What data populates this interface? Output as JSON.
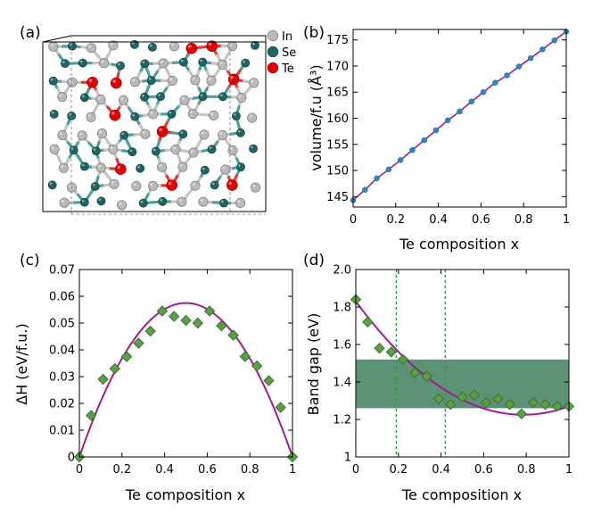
{
  "figure": {
    "panel_labels": [
      "(a)",
      "(b)",
      "(c)",
      "(d)"
    ],
    "legend_atoms": [
      {
        "label": "In",
        "color": "#b9b9b9"
      },
      {
        "label": "Se",
        "color": "#1f6463"
      },
      {
        "label": "Te",
        "color": "#e00000"
      }
    ]
  },
  "chart_data": [
    {
      "panel": "(b)",
      "type": "line",
      "xlabel": "Te composition x",
      "ylabel": "volume/f.u (Å³)",
      "xlim": [
        0,
        1
      ],
      "ylim": [
        143,
        177
      ],
      "xticks": [
        0,
        0.2,
        0.4,
        0.6,
        0.8,
        1
      ],
      "xtick_labels": [
        "0",
        "0.2",
        "0.4",
        "0.6",
        "0.8",
        "1"
      ],
      "yticks": [
        145,
        150,
        155,
        160,
        165,
        170,
        175
      ],
      "ytick_labels": [
        "145",
        "150",
        "155",
        "160",
        "165",
        "170",
        "175"
      ],
      "colors": {
        "line": "#9c1d8e",
        "marker": "#2f86c6"
      },
      "series": [
        {
          "x": [
            0,
            0.0556,
            0.1111,
            0.1667,
            0.2222,
            0.2778,
            0.3333,
            0.3889,
            0.4444,
            0.5,
            0.5556,
            0.6111,
            0.6667,
            0.7222,
            0.7778,
            0.8333,
            0.8889,
            0.9444,
            1
          ],
          "y": [
            144.3,
            146.3,
            148.5,
            150.2,
            152.0,
            153.9,
            155.8,
            157.7,
            159.6,
            161.3,
            163.2,
            165.0,
            166.8,
            168.2,
            169.9,
            171.5,
            173.2,
            174.9,
            176.6
          ]
        }
      ]
    },
    {
      "panel": "(c)",
      "type": "scatter",
      "xlabel": "Te composition x",
      "ylabel": "ΔH (eV/f.u.)",
      "xlim": [
        0,
        1
      ],
      "ylim": [
        0,
        0.07
      ],
      "xticks": [
        0,
        0.2,
        0.4,
        0.6,
        0.8,
        1
      ],
      "xtick_labels": [
        "0",
        "0.2",
        "0.4",
        "0.6",
        "0.8",
        "1"
      ],
      "yticks": [
        0,
        0.01,
        0.02,
        0.03,
        0.04,
        0.05,
        0.06,
        0.07
      ],
      "ytick_labels": [
        "0",
        "0.01",
        "0.02",
        "0.03",
        "0.04",
        "0.05",
        "0.06",
        "0.07"
      ],
      "colors": {
        "curve": "#9c1d8e",
        "marker_fill": "#5aa045",
        "marker_edge": "#3d6e30"
      },
      "fit_curve": {
        "form": "parabola",
        "peak_x": 0.5,
        "peak_y": 0.0575
      },
      "series": [
        {
          "x": [
            0,
            0.0556,
            0.1111,
            0.1667,
            0.2222,
            0.2778,
            0.3333,
            0.3889,
            0.4444,
            0.5,
            0.5556,
            0.6111,
            0.6667,
            0.7222,
            0.7778,
            0.8333,
            0.8889,
            0.9444,
            1
          ],
          "y": [
            0,
            0.0155,
            0.029,
            0.033,
            0.0375,
            0.0425,
            0.047,
            0.0545,
            0.0525,
            0.051,
            0.05,
            0.0545,
            0.049,
            0.0455,
            0.0375,
            0.034,
            0.0285,
            0.0185,
            0
          ]
        }
      ]
    },
    {
      "panel": "(d)",
      "type": "scatter",
      "xlabel": "Te composition x",
      "ylabel": "Band gap (eV)",
      "xlim": [
        0,
        1
      ],
      "ylim": [
        1.0,
        2.0
      ],
      "xticks": [
        0,
        0.2,
        0.4,
        0.6,
        0.8,
        1
      ],
      "xtick_labels": [
        "0",
        "0.2",
        "0.4",
        "0.6",
        "0.8",
        "1"
      ],
      "yticks": [
        1,
        1.2,
        1.4,
        1.6,
        1.8,
        2.0
      ],
      "ytick_labels": [
        "1",
        "1.2",
        "1.4",
        "1.6",
        "1.8",
        "2.0"
      ],
      "colors": {
        "curve": "#9c1d8e",
        "marker_fill": "#5aa045",
        "marker_edge": "#3d6e30",
        "band": "#5e9277",
        "vline": "#2f9a48"
      },
      "shaded_band": {
        "y": [
          1.26,
          1.52
        ]
      },
      "vertical_lines": [
        0.19,
        0.42
      ],
      "fit_curve": {
        "form": "quadratic",
        "coefficients": [
          1.83,
          -1.54,
          0.98
        ]
      },
      "series": [
        {
          "x": [
            0,
            0.0556,
            0.1111,
            0.1667,
            0.2222,
            0.2778,
            0.3333,
            0.3889,
            0.4444,
            0.5,
            0.5556,
            0.6111,
            0.6667,
            0.7222,
            0.7778,
            0.8333,
            0.8889,
            0.9444,
            1
          ],
          "y": [
            1.84,
            1.72,
            1.58,
            1.56,
            1.52,
            1.45,
            1.43,
            1.31,
            1.28,
            1.32,
            1.33,
            1.29,
            1.31,
            1.28,
            1.23,
            1.29,
            1.28,
            1.27,
            1.27
          ]
        }
      ]
    }
  ]
}
